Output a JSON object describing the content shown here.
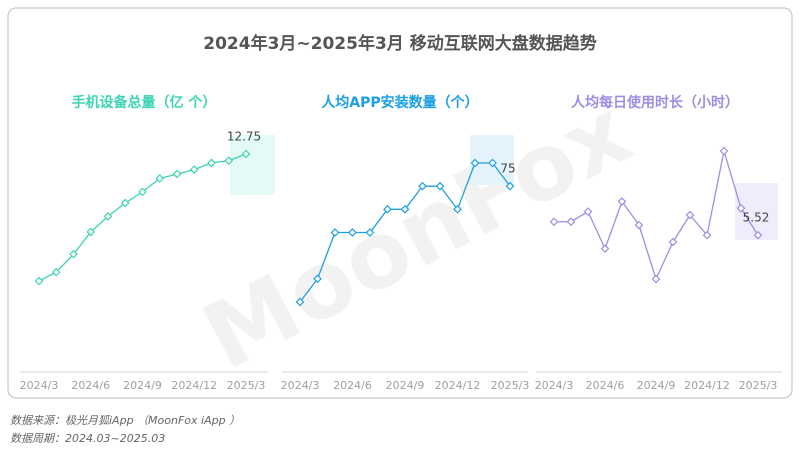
{
  "title": "2024年3月~2025年3月 移动互联网大盘数据趋势",
  "watermark": "MoonFox",
  "footnotes": [
    "数据来源：极光月狐iApp （MoonFox iApp ）",
    "数据周期：2024.03~2025.03"
  ],
  "chart_data": [
    {
      "type": "line",
      "title": "手机设备总量（亿 个）",
      "color": "#3dd4b4",
      "categories": [
        "2024/3",
        null,
        null,
        "2024/6",
        null,
        null,
        "2024/9",
        null,
        null,
        "2024/12",
        null,
        null,
        "2025/3"
      ],
      "values": [
        12.18,
        12.22,
        12.3,
        12.4,
        12.47,
        12.53,
        12.58,
        12.64,
        12.66,
        12.68,
        12.71,
        12.72,
        12.75
      ]
    },
    {
      "type": "line",
      "title": "人均APP安装数量（个）",
      "color": "#1d9fe3",
      "categories": [
        "2024/3",
        null,
        null,
        "2024/6",
        null,
        null,
        "2024/9",
        null,
        null,
        "2024/12",
        null,
        null,
        "2025/3"
      ],
      "values": [
        70,
        71,
        73,
        73,
        73,
        74,
        74,
        75,
        75,
        74,
        76,
        76,
        75
      ]
    },
    {
      "type": "line",
      "title": "人均每日使用时长（小时）",
      "color": "#9d8ee3",
      "categories": [
        "2024/3",
        null,
        null,
        "2024/6",
        null,
        null,
        "2024/9",
        null,
        null,
        "2024/12",
        null,
        null,
        "2025/3"
      ],
      "values": [
        5.56,
        5.56,
        5.59,
        5.48,
        5.62,
        5.55,
        5.39,
        5.5,
        5.58,
        5.52,
        5.77,
        5.6,
        5.52
      ]
    }
  ]
}
